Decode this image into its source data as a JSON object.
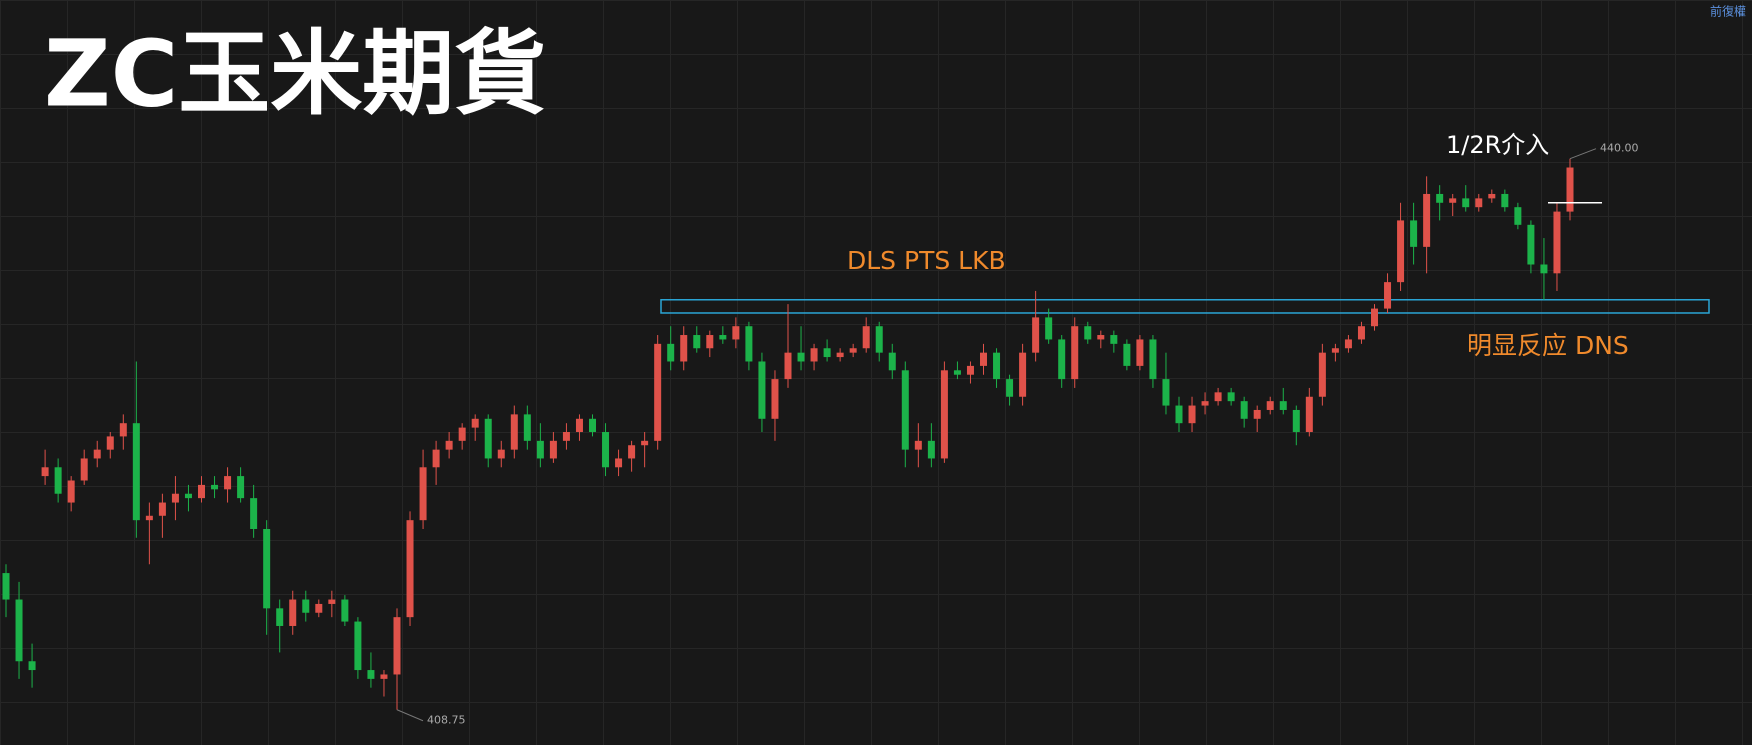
{
  "header": {
    "adjust": "前復權"
  },
  "chart_data": {
    "type": "candlestick",
    "title": "ZC玉米期貨",
    "ylim": [
      406.75,
      449
    ],
    "up_color": "#e0524a",
    "down_color": "#1cb34a",
    "ohlc": [
      [
        416.5,
        417,
        414,
        415
      ],
      [
        415,
        416,
        410.5,
        411.5
      ],
      [
        411.5,
        412.5,
        410,
        411
      ],
      [
        422,
        423.5,
        421.5,
        422.5
      ],
      [
        422.5,
        423,
        420.5,
        421
      ],
      [
        420.5,
        422,
        420,
        421.75
      ],
      [
        421.75,
        423.5,
        421.5,
        423
      ],
      [
        423,
        424,
        422.5,
        423.5
      ],
      [
        423.5,
        424.5,
        423,
        424.25
      ],
      [
        424.25,
        425.5,
        423.5,
        425
      ],
      [
        425,
        428.5,
        418.5,
        419.5
      ],
      [
        419.5,
        420.5,
        417,
        419.75
      ],
      [
        419.75,
        421,
        418.5,
        420.5
      ],
      [
        420.5,
        422,
        419.5,
        421
      ],
      [
        421,
        421.5,
        420,
        420.75
      ],
      [
        420.75,
        422,
        420.5,
        421.5
      ],
      [
        421.5,
        422,
        420.75,
        421.25
      ],
      [
        421.25,
        422.5,
        420.5,
        422
      ],
      [
        422,
        422.5,
        420.5,
        420.75
      ],
      [
        420.75,
        421.5,
        418.5,
        419
      ],
      [
        419,
        419.5,
        413,
        414.5
      ],
      [
        414.5,
        415,
        412,
        413.5
      ],
      [
        413.5,
        415.5,
        413,
        415
      ],
      [
        415,
        415.5,
        413.75,
        414.25
      ],
      [
        414.25,
        415,
        414,
        414.75
      ],
      [
        414.75,
        415.5,
        414,
        415
      ],
      [
        415,
        415.25,
        413.5,
        413.75
      ],
      [
        413.75,
        414,
        410.5,
        411
      ],
      [
        411,
        412,
        410,
        410.5
      ],
      [
        410.5,
        411,
        409.5,
        410.75
      ],
      [
        410.75,
        414.5,
        408.75,
        414
      ],
      [
        414,
        420,
        413.5,
        419.5
      ],
      [
        419.5,
        423.5,
        419,
        422.5
      ],
      [
        422.5,
        424,
        421.5,
        423.5
      ],
      [
        423.5,
        424.5,
        423,
        424
      ],
      [
        424,
        425,
        423.5,
        424.75
      ],
      [
        424.75,
        425.5,
        424,
        425.25
      ],
      [
        425.25,
        425.5,
        422.5,
        423
      ],
      [
        423,
        424,
        422.5,
        423.5
      ],
      [
        423.5,
        426,
        423,
        425.5
      ],
      [
        425.5,
        426,
        423.5,
        424
      ],
      [
        424,
        425,
        422.5,
        423
      ],
      [
        423,
        424.5,
        422.75,
        424
      ],
      [
        424,
        425,
        423.5,
        424.5
      ],
      [
        424.5,
        425.5,
        424,
        425.25
      ],
      [
        425.25,
        425.5,
        424.25,
        424.5
      ],
      [
        424.5,
        425,
        422,
        422.5
      ],
      [
        422.5,
        423.5,
        422,
        423
      ],
      [
        423,
        424,
        422.25,
        423.75
      ],
      [
        423.75,
        424.5,
        422.5,
        424
      ],
      [
        424,
        430,
        423.5,
        429.5
      ],
      [
        429.5,
        430.5,
        428,
        428.5
      ],
      [
        428.5,
        430.5,
        428,
        430
      ],
      [
        430,
        430.5,
        429,
        429.25
      ],
      [
        429.25,
        430.25,
        428.75,
        430
      ],
      [
        430,
        430.5,
        429.5,
        429.75
      ],
      [
        429.75,
        431,
        429.25,
        430.5
      ],
      [
        430.5,
        430.75,
        428,
        428.5
      ],
      [
        428.5,
        429,
        424.5,
        425.25
      ],
      [
        425.25,
        428,
        424,
        427.5
      ],
      [
        427.5,
        431.75,
        427,
        429
      ],
      [
        429,
        430.5,
        428,
        428.5
      ],
      [
        428.5,
        429.5,
        428,
        429.25
      ],
      [
        429.25,
        429.75,
        428.5,
        428.75
      ],
      [
        428.75,
        429.25,
        428.5,
        429
      ],
      [
        429,
        429.5,
        428.75,
        429.25
      ],
      [
        429.25,
        431,
        429,
        430.5
      ],
      [
        430.5,
        430.75,
        428.5,
        429
      ],
      [
        429,
        429.5,
        427.5,
        428
      ],
      [
        428,
        428.5,
        422.5,
        423.5
      ],
      [
        423.5,
        425,
        422.5,
        424
      ],
      [
        424,
        425,
        422.5,
        423
      ],
      [
        423,
        428.5,
        422.75,
        428
      ],
      [
        428,
        428.5,
        427.5,
        427.75
      ],
      [
        427.75,
        428.5,
        427.25,
        428.25
      ],
      [
        428.25,
        429.5,
        427.75,
        429
      ],
      [
        429,
        429.25,
        427,
        427.5
      ],
      [
        427.5,
        427.75,
        426,
        426.5
      ],
      [
        426.5,
        429.5,
        426,
        429
      ],
      [
        429,
        432.5,
        428.5,
        431
      ],
      [
        431,
        431.5,
        429.5,
        429.75
      ],
      [
        429.75,
        430,
        427,
        427.5
      ],
      [
        427.5,
        431,
        427,
        430.5
      ],
      [
        430.5,
        430.75,
        429.5,
        429.75
      ],
      [
        429.75,
        430.25,
        429.25,
        430
      ],
      [
        430,
        430.25,
        429,
        429.5
      ],
      [
        429.5,
        429.75,
        428,
        428.25
      ],
      [
        428.25,
        430,
        428,
        429.75
      ],
      [
        429.75,
        430,
        427,
        427.5
      ],
      [
        427.5,
        429,
        425.5,
        426
      ],
      [
        426,
        426.5,
        424.5,
        425
      ],
      [
        425,
        426.5,
        424.5,
        426
      ],
      [
        426,
        426.75,
        425.5,
        426.25
      ],
      [
        426.25,
        427,
        426,
        426.75
      ],
      [
        426.75,
        427,
        426,
        426.25
      ],
      [
        426.25,
        426.5,
        424.75,
        425.25
      ],
      [
        425.25,
        426,
        424.5,
        425.75
      ],
      [
        425.75,
        426.5,
        425.5,
        426.25
      ],
      [
        426.25,
        427,
        425.5,
        425.75
      ],
      [
        425.75,
        426,
        423.75,
        424.5
      ],
      [
        424.5,
        427,
        424.25,
        426.5
      ],
      [
        426.5,
        429.5,
        426,
        429
      ],
      [
        429,
        429.5,
        428.5,
        429.25
      ],
      [
        429.25,
        430,
        429,
        429.75
      ],
      [
        429.75,
        430.75,
        429.5,
        430.5
      ],
      [
        430.5,
        431.75,
        430.25,
        431.5
      ],
      [
        431.5,
        433.5,
        431.25,
        433
      ],
      [
        433,
        437.5,
        432.5,
        436.5
      ],
      [
        436.5,
        437.5,
        434,
        435
      ],
      [
        435,
        439,
        433.5,
        438
      ],
      [
        438,
        438.5,
        436.5,
        437.5
      ],
      [
        437.5,
        438,
        436.75,
        437.75
      ],
      [
        437.75,
        438.5,
        437,
        437.25
      ],
      [
        437.25,
        438,
        437,
        437.75
      ],
      [
        437.75,
        438.25,
        437.5,
        438
      ],
      [
        438,
        438.25,
        437,
        437.25
      ],
      [
        437.25,
        437.5,
        436,
        436.25
      ],
      [
        436.25,
        436.5,
        433.5,
        434
      ],
      [
        434,
        435.5,
        432,
        433.5
      ],
      [
        433.5,
        437.5,
        432.5,
        437
      ],
      [
        437,
        440,
        436.5,
        439.5
      ]
    ],
    "high_label": {
      "value": 440,
      "label": "440.00"
    },
    "low_label": {
      "value": 408.75,
      "label": "408.75"
    },
    "zone": [
      431.25,
      432
    ],
    "zone_color": "#2aa6d6",
    "zone_label": "DLS PTS LKB",
    "reaction_label": "明显反应 DNS",
    "entry": {
      "value": 437.5,
      "label": "1/2R介入"
    }
  }
}
